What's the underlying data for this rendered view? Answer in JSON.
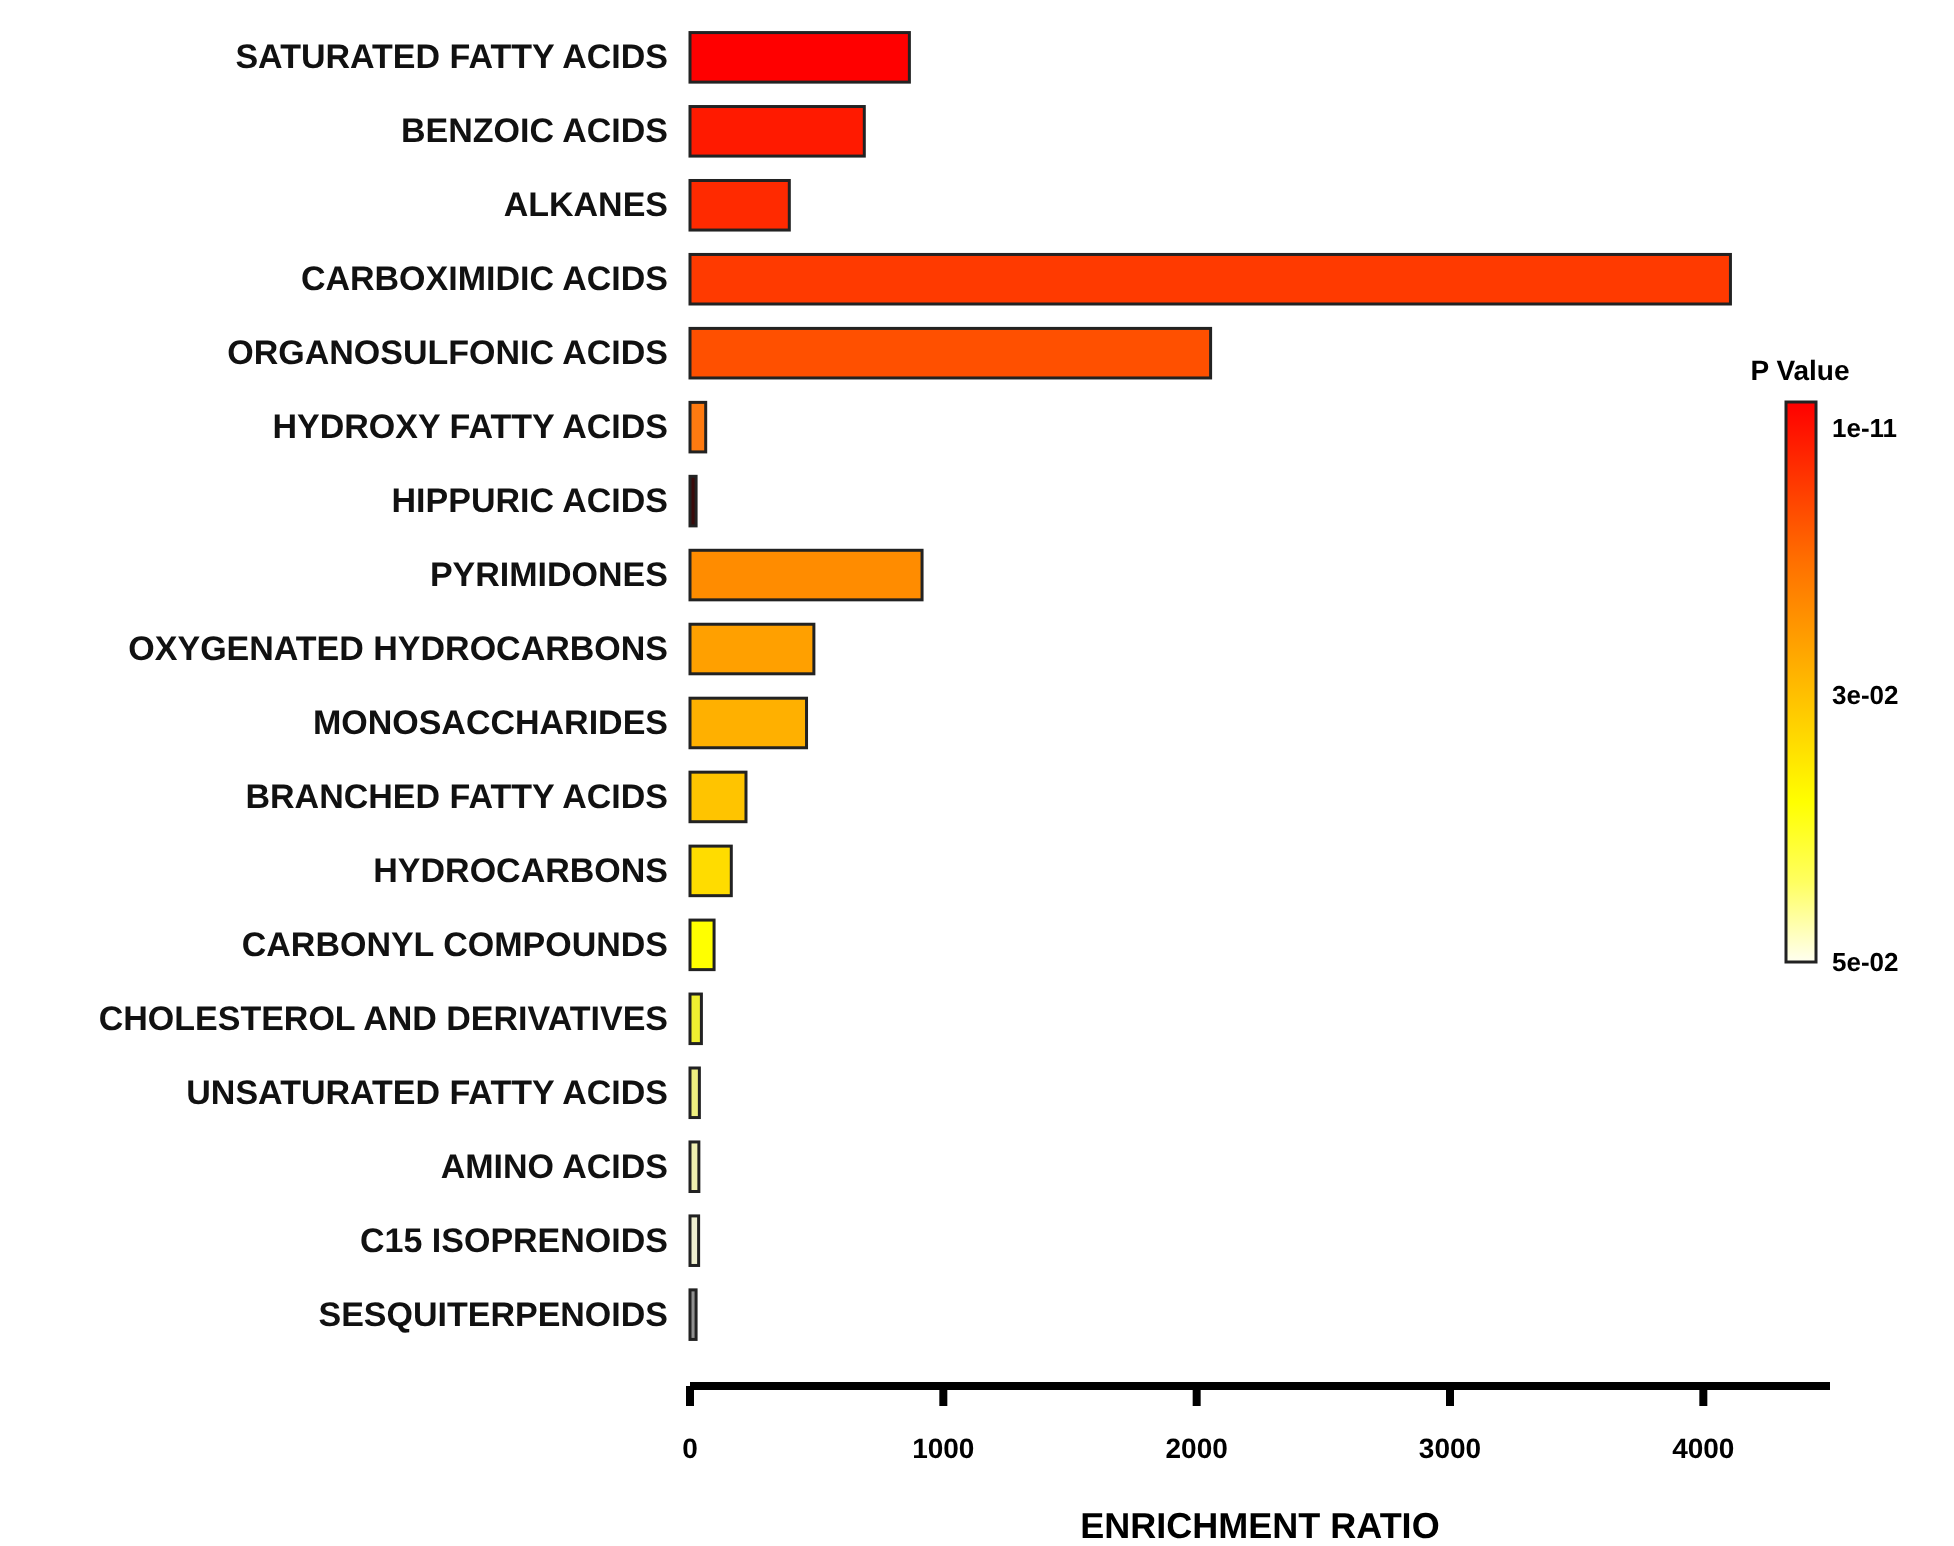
{
  "chart_data": {
    "type": "bar",
    "orientation": "horizontal",
    "xlabel": "ENRICHMENT RATIO",
    "clabel": "P Value",
    "categories": [
      "SATURATED FATTY ACIDS",
      "BENZOIC ACIDS",
      "ALKANES",
      "CARBOXIMIDIC ACIDS",
      "ORGANOSULFONIC ACIDS",
      "HYDROXY FATTY ACIDS",
      "HIPPURIC ACIDS",
      "PYRIMIDONES",
      "OXYGENATED HYDROCARBONS",
      "MONOSACCHARIDES",
      "BRANCHED FATTY ACIDS",
      "HYDROCARBONS",
      "CARBONYL COMPOUNDS",
      "CHOLESTEROL AND DERIVATIVES",
      "UNSATURATED FATTY ACIDS",
      "AMINO ACIDS",
      "C15 ISOPRENOIDS",
      "SESQUITERPENOIDS"
    ],
    "values": [
      866,
      688,
      392,
      4107,
      2055,
      62,
      24,
      916,
      489,
      460,
      221,
      163,
      95,
      45,
      37,
      35,
      34,
      24
    ],
    "colors": [
      "#ff0000",
      "#ff1a00",
      "#ff2a00",
      "#ff3a00",
      "#ff5000",
      "#ff7a10",
      "#3a0a0a",
      "#ff8c00",
      "#ffa000",
      "#ffb000",
      "#ffc400",
      "#ffdc00",
      "#ffff00",
      "#f0f030",
      "#f0f080",
      "#f0f0b0",
      "#f0f0d0",
      "#909090"
    ],
    "xlim": [
      0,
      4500
    ],
    "xticks": [
      0,
      1000,
      2000,
      3000,
      4000
    ],
    "annotations": [
      "1e-11",
      "3e-02",
      "5e-02"
    ]
  }
}
